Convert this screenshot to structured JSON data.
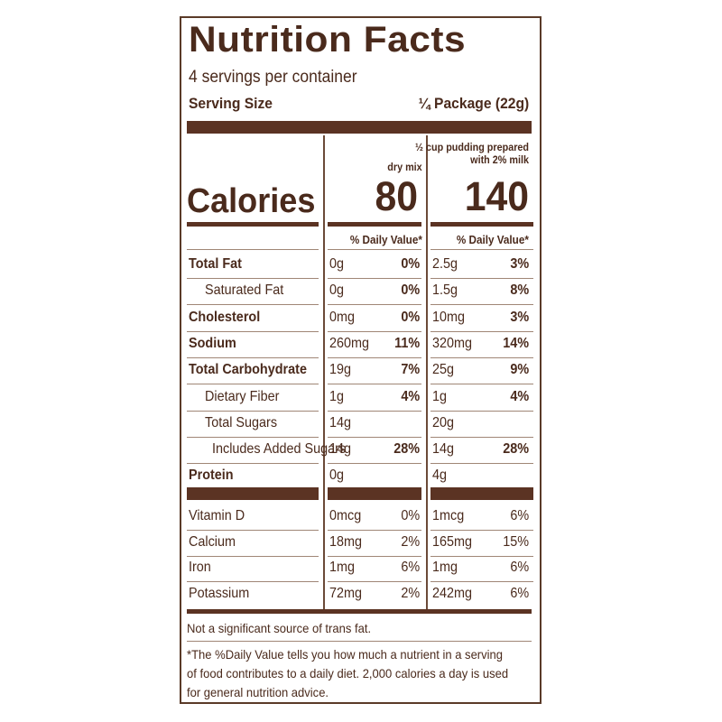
{
  "title": "Nutrition Facts",
  "servings_per_container": "4 servings per container",
  "serving_size_label": "Serving Size",
  "serving_size_value": "¼ Package (22g)",
  "columns": [
    {
      "heading_line1": "",
      "heading_line2": "dry mix",
      "calories": "80",
      "dv_label": "% Daily Value*"
    },
    {
      "heading_line1": "½ cup pudding prepared",
      "heading_line2": "with 2% milk",
      "calories": "140",
      "dv_label": "% Daily Value*"
    }
  ],
  "calories_label": "Calories",
  "nutrients": [
    {
      "label": "Total Fat",
      "bold": true,
      "indent": 0,
      "c1_amount": "0g",
      "c1_dv": "0%",
      "c2_amount": "2.5g",
      "c2_dv": "3%"
    },
    {
      "label": "Saturated Fat",
      "bold": false,
      "indent": 1,
      "c1_amount": "0g",
      "c1_dv": "0%",
      "c2_amount": "1.5g",
      "c2_dv": "8%"
    },
    {
      "label": "Cholesterol",
      "bold": true,
      "indent": 0,
      "c1_amount": "0mg",
      "c1_dv": "0%",
      "c2_amount": "10mg",
      "c2_dv": "3%"
    },
    {
      "label": "Sodium",
      "bold": true,
      "indent": 0,
      "c1_amount": "260mg",
      "c1_dv": "11%",
      "c2_amount": "320mg",
      "c2_dv": "14%"
    },
    {
      "label": "Total Carbohydrate",
      "bold": true,
      "indent": 0,
      "c1_amount": "19g",
      "c1_dv": "7%",
      "c2_amount": "25g",
      "c2_dv": "9%"
    },
    {
      "label": "Dietary Fiber",
      "bold": false,
      "indent": 1,
      "c1_amount": "1g",
      "c1_dv": "4%",
      "c2_amount": "1g",
      "c2_dv": "4%"
    },
    {
      "label": "Total Sugars",
      "bold": false,
      "indent": 1,
      "c1_amount": "14g",
      "c1_dv": "",
      "c2_amount": "20g",
      "c2_dv": ""
    },
    {
      "label": "Includes Added Sugars",
      "bold": false,
      "indent": 2,
      "c1_amount": "14g",
      "c1_dv": "28%",
      "c2_amount": "14g",
      "c2_dv": "28%"
    },
    {
      "label": "Protein",
      "bold": true,
      "indent": 0,
      "c1_amount": "0g",
      "c1_dv": "",
      "c2_amount": "4g",
      "c2_dv": ""
    }
  ],
  "vitamins": [
    {
      "label": "Vitamin D",
      "c1_amount": "0mcg",
      "c1_dv": "0%",
      "c2_amount": "1mcg",
      "c2_dv": "6%"
    },
    {
      "label": "Calcium",
      "c1_amount": "18mg",
      "c1_dv": "2%",
      "c2_amount": "165mg",
      "c2_dv": "15%"
    },
    {
      "label": "Iron",
      "c1_amount": "1mg",
      "c1_dv": "6%",
      "c2_amount": "1mg",
      "c2_dv": "6%"
    },
    {
      "label": "Potassium",
      "c1_amount": "72mg",
      "c1_dv": "2%",
      "c2_amount": "242mg",
      "c2_dv": "6%"
    }
  ],
  "trans_fat_note": "Not a significant source of trans fat.",
  "footnote_lines": [
    "*The %Daily Value tells you how much a nutrient in a serving",
    "of food contributes to a daily diet. 2,000 calories a day is used",
    "for general nutrition advice."
  ],
  "colors": {
    "ink": "#4a2a1c",
    "bar": "#5b3323",
    "border": "#5a3a28"
  }
}
